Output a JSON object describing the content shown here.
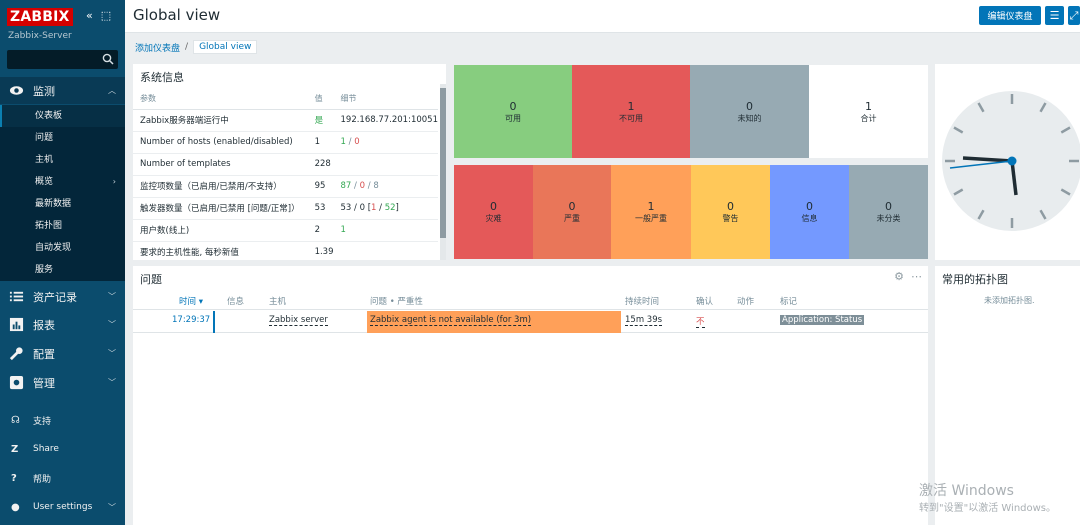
{
  "sidebar": {
    "logo": "ZABBIX",
    "server": "Zabbix-Server",
    "monitoring": "监测",
    "submenu": [
      {
        "label": "仪表板"
      },
      {
        "label": "问题"
      },
      {
        "label": "主机"
      },
      {
        "label": "概览"
      },
      {
        "label": "最新数据"
      },
      {
        "label": "拓扑图"
      },
      {
        "label": "自动发现"
      },
      {
        "label": "服务"
      }
    ],
    "assets": "资产记录",
    "reports": "报表",
    "config": "配置",
    "admin": "管理",
    "support": "支持",
    "share": "Share",
    "help": "帮助",
    "user_settings": "User settings"
  },
  "header": {
    "title": "Global view",
    "edit_button": "编辑仪表盘"
  },
  "breadcrumb": {
    "parent": "添加仪表盘",
    "separator": "/",
    "current": "Global view"
  },
  "sysinfo": {
    "title": "系统信息",
    "col_param": "参数",
    "col_value": "值",
    "col_detail": "细节",
    "rows": [
      {
        "param": "Zabbix服务器端运行中",
        "value": "是",
        "detail": "192.168.77.201:10051"
      },
      {
        "param": "Number of hosts (enabled/disabled)",
        "value": "1",
        "detail_a": "1",
        "detail_sep": " / ",
        "detail_b": "0"
      },
      {
        "param": "Number of templates",
        "value": "228",
        "detail": ""
      },
      {
        "param": "监控项数量（已启用/已禁用/不支持）",
        "value": "95",
        "detail_a": "87",
        "detail_sep1": " / ",
        "detail_b": "0",
        "detail_sep2": " / ",
        "detail_c": "8"
      },
      {
        "param": "触发器数量（已启用/已禁用 [问题/正常]）",
        "value": "53",
        "detail_pre": "53 / 0 [",
        "detail_a": "1",
        "detail_sep": " / ",
        "detail_b": "52",
        "detail_post": "]"
      },
      {
        "param": "用户数(线上)",
        "value": "2",
        "detail": "1"
      },
      {
        "param": "要求的主机性能, 每秒新值",
        "value": "1.39",
        "detail": ""
      }
    ]
  },
  "host_availability": [
    {
      "count": "0",
      "label": "可用",
      "color": "#87cd7f"
    },
    {
      "count": "1",
      "label": "不可用",
      "color": "#e45959"
    },
    {
      "count": "0",
      "label": "未知的",
      "color": "#97aab3"
    },
    {
      "count": "1",
      "label": "合计",
      "color": "#ffffff"
    }
  ],
  "problems_by_severity": [
    {
      "count": "0",
      "label": "灾难",
      "color": "#e45959"
    },
    {
      "count": "0",
      "label": "严重",
      "color": "#e97659"
    },
    {
      "count": "1",
      "label": "一般严重",
      "color": "#ffa059"
    },
    {
      "count": "0",
      "label": "警告",
      "color": "#ffc859"
    },
    {
      "count": "0",
      "label": "信息",
      "color": "#7499ff"
    },
    {
      "count": "0",
      "label": "未分类",
      "color": "#97aab3"
    }
  ],
  "problems": {
    "title": "问题",
    "columns": {
      "time": "时间 ▾",
      "info": "信息",
      "host": "主机",
      "problem": "问题 • 严重性",
      "duration": "持续时间",
      "ack": "确认",
      "actions": "动作",
      "tags": "标记"
    },
    "rows": [
      {
        "time": "17:29:37",
        "host": "Zabbix server",
        "problem": "Zabbix agent is not available (for 3m)",
        "duration": "15m 39s",
        "ack": "不",
        "tag": "Application: Status"
      }
    ]
  },
  "maps": {
    "title": "常用的拓扑图",
    "empty": "未添加拓扑图."
  },
  "watermark": {
    "line1": "激活 Windows",
    "line2": "转到\"设置\"以激活 Windows。"
  }
}
